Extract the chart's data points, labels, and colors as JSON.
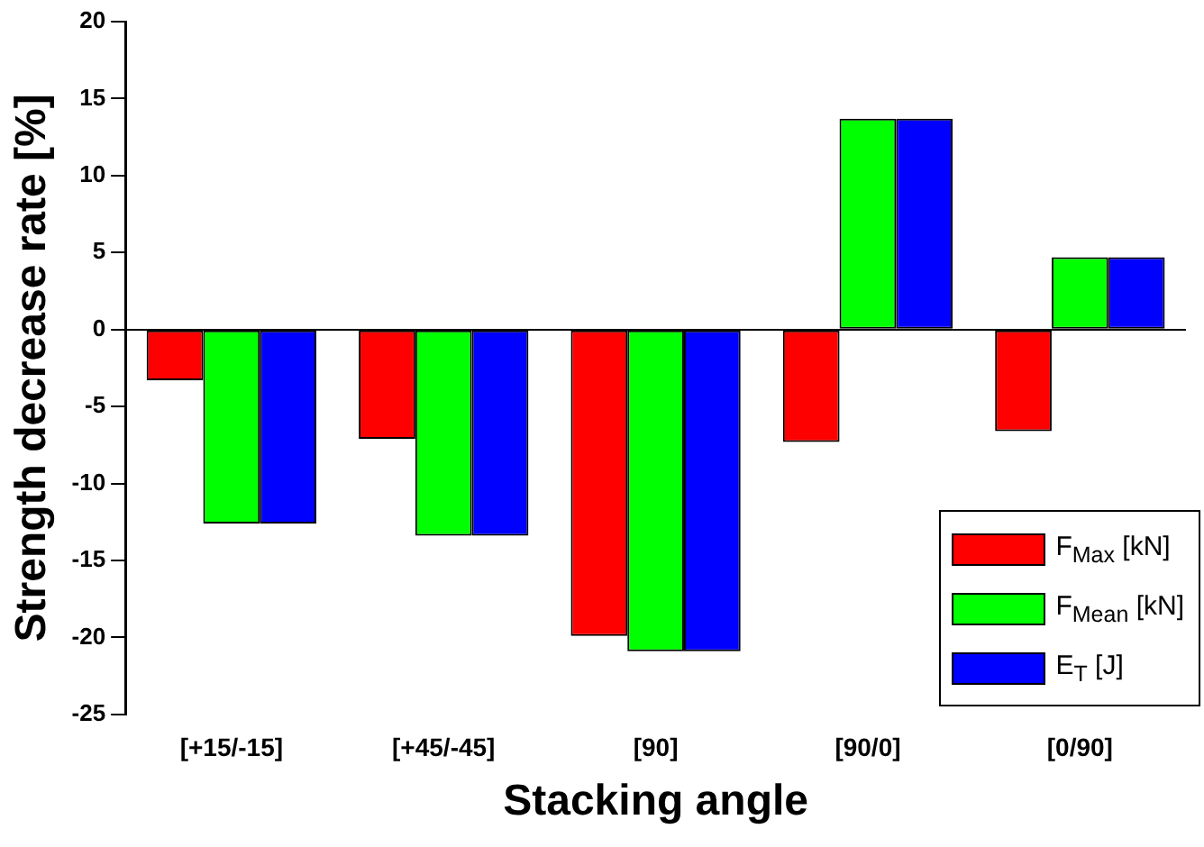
{
  "chart_data": {
    "type": "bar",
    "xlabel": "Stacking angle",
    "ylabel": "Strength decrease rate [%]",
    "categories": [
      "[+15/-15]",
      "[+45/-45]",
      "[90]",
      "[90/0]",
      "[0/90]"
    ],
    "series": [
      {
        "name": "F$_{Max}$ [kN]",
        "color": "#ff0000",
        "values": [
          -3.3,
          -7.1,
          -19.9,
          -7.3,
          -6.6
        ]
      },
      {
        "name": "F$_{Mean}$ [kN]",
        "color": "#00ff00",
        "values": [
          -12.6,
          -13.4,
          -20.9,
          13.7,
          4.7
        ]
      },
      {
        "name": "E$_{T}$ [J]",
        "color": "#0000ff",
        "values": [
          -12.6,
          -13.4,
          -20.9,
          13.7,
          4.7
        ]
      }
    ],
    "ylim": [
      -25,
      20
    ],
    "yticks": [
      -25,
      -20,
      -15,
      -10,
      -5,
      0,
      5,
      10,
      15,
      20
    ],
    "legend": "bottom right"
  }
}
